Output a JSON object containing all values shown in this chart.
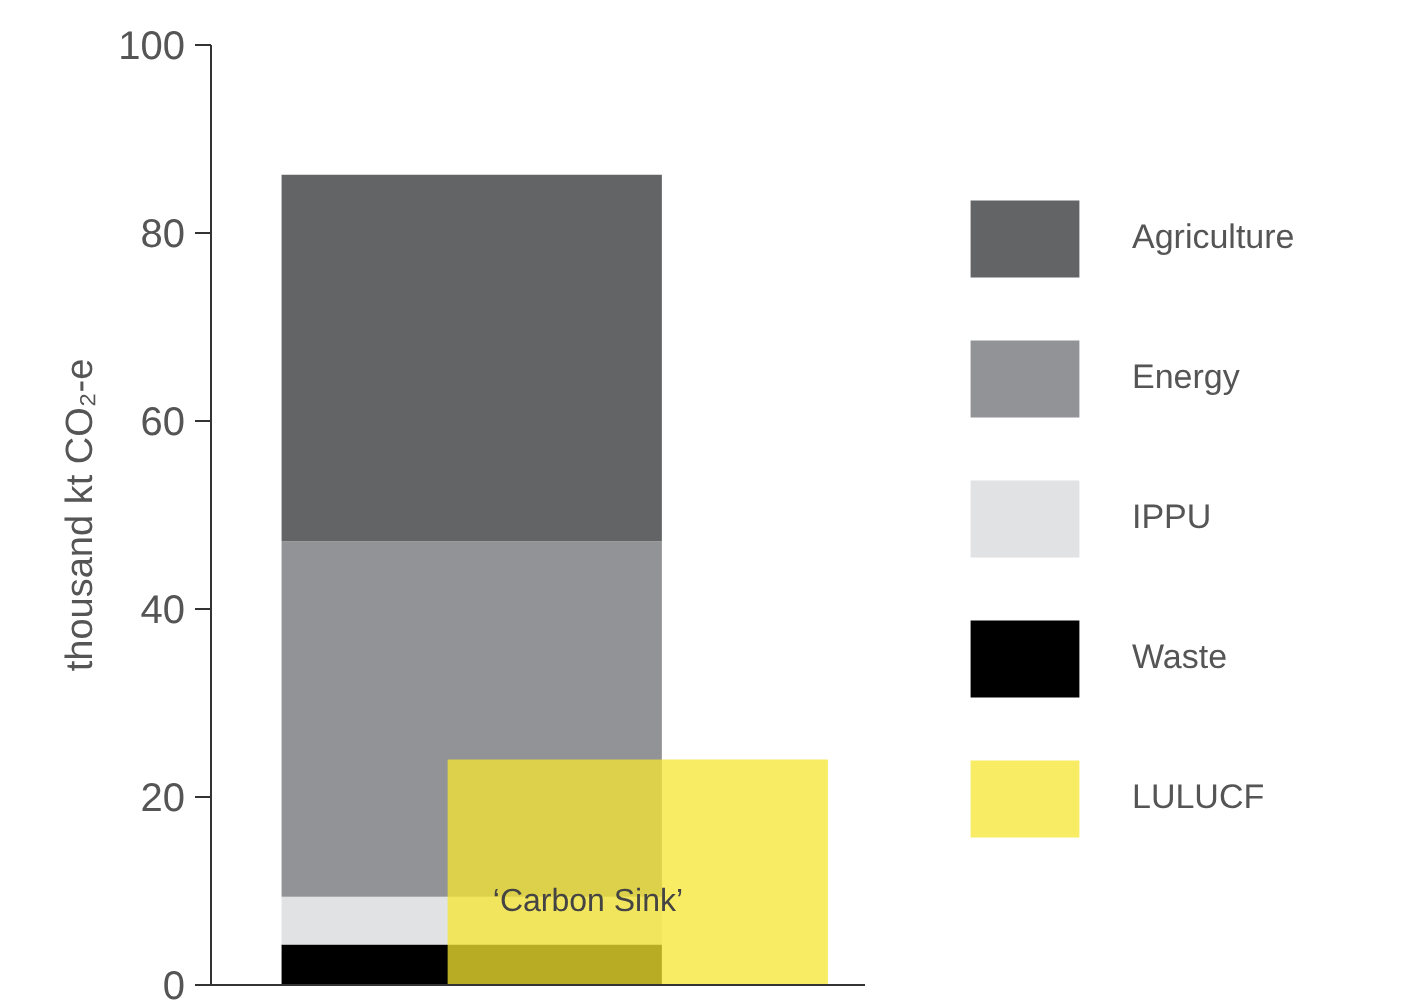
{
  "chart_data": {
    "type": "bar",
    "stacked": true,
    "ylabel": "thousand kt CO₂-e",
    "categories": [
      null,
      null
    ],
    "series": [
      {
        "name": "Waste",
        "color": "#000000",
        "values": [
          4.3,
          null
        ]
      },
      {
        "name": "IPPU",
        "color": "#e1e2e3",
        "values": [
          5.1,
          null
        ]
      },
      {
        "name": "Energy",
        "color": "#929396",
        "values": [
          37.8,
          null
        ]
      },
      {
        "name": "Agriculture",
        "color": "#636466",
        "values": [
          39,
          null
        ]
      },
      {
        "name": "LULUCF",
        "color": "#f5e631",
        "values": [
          null,
          24
        ]
      }
    ],
    "ylim": [
      0,
      100
    ],
    "yticks": [
      0,
      20,
      40,
      60,
      80,
      100
    ],
    "tick_labels": "y",
    "grid": false,
    "legend": "right",
    "annotations": [
      "‘Carbon Sink’"
    ]
  }
}
